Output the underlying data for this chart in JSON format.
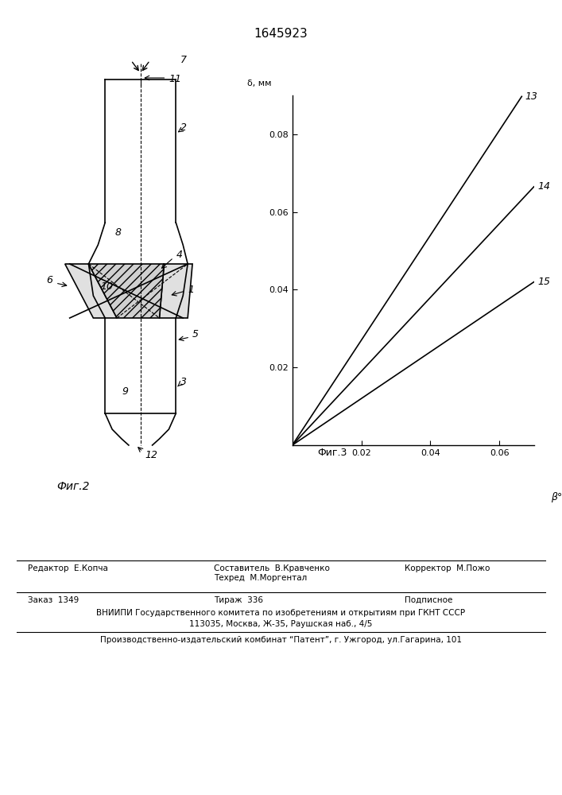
{
  "title": "1645923",
  "fig2_caption": "Фиг.2",
  "fig3_caption": "Фиг.3",
  "graph": {
    "xlabel": "β°",
    "ylabel": "δ, мм",
    "xlim": [
      0,
      0.07
    ],
    "ylim": [
      0,
      0.09
    ],
    "xticks": [
      0.02,
      0.04,
      0.06
    ],
    "yticks": [
      0.02,
      0.04,
      0.06,
      0.08
    ],
    "lines": [
      {
        "label": "13",
        "slope": 1.35,
        "color": "#000000"
      },
      {
        "label": "14",
        "slope": 0.95,
        "color": "#000000"
      },
      {
        "label": "15",
        "slope": 0.6,
        "color": "#000000"
      }
    ]
  },
  "footer": {
    "line1_left": "Редактор  Е.Копча",
    "line1_center": "Составитель  В.Кравченко\nТехред  М.Моргентал",
    "line1_right": "Корректор  М.Пожо",
    "line2_left": "Заказ  1349",
    "line2_center": "Тираж  336",
    "line2_right": "Подписное",
    "line3": "ВНИИПИ Государственного комитета по изобретениям и открытиям при ГКНТ СССР",
    "line4": "113035, Москва, Ж-35, Раушская наб., 4/5",
    "line5": "Производственно-издательский комбинат “Патент”, г. Ужгород, ул.Гагарина, 101"
  },
  "bg_color": "#ffffff",
  "line_color": "#000000"
}
